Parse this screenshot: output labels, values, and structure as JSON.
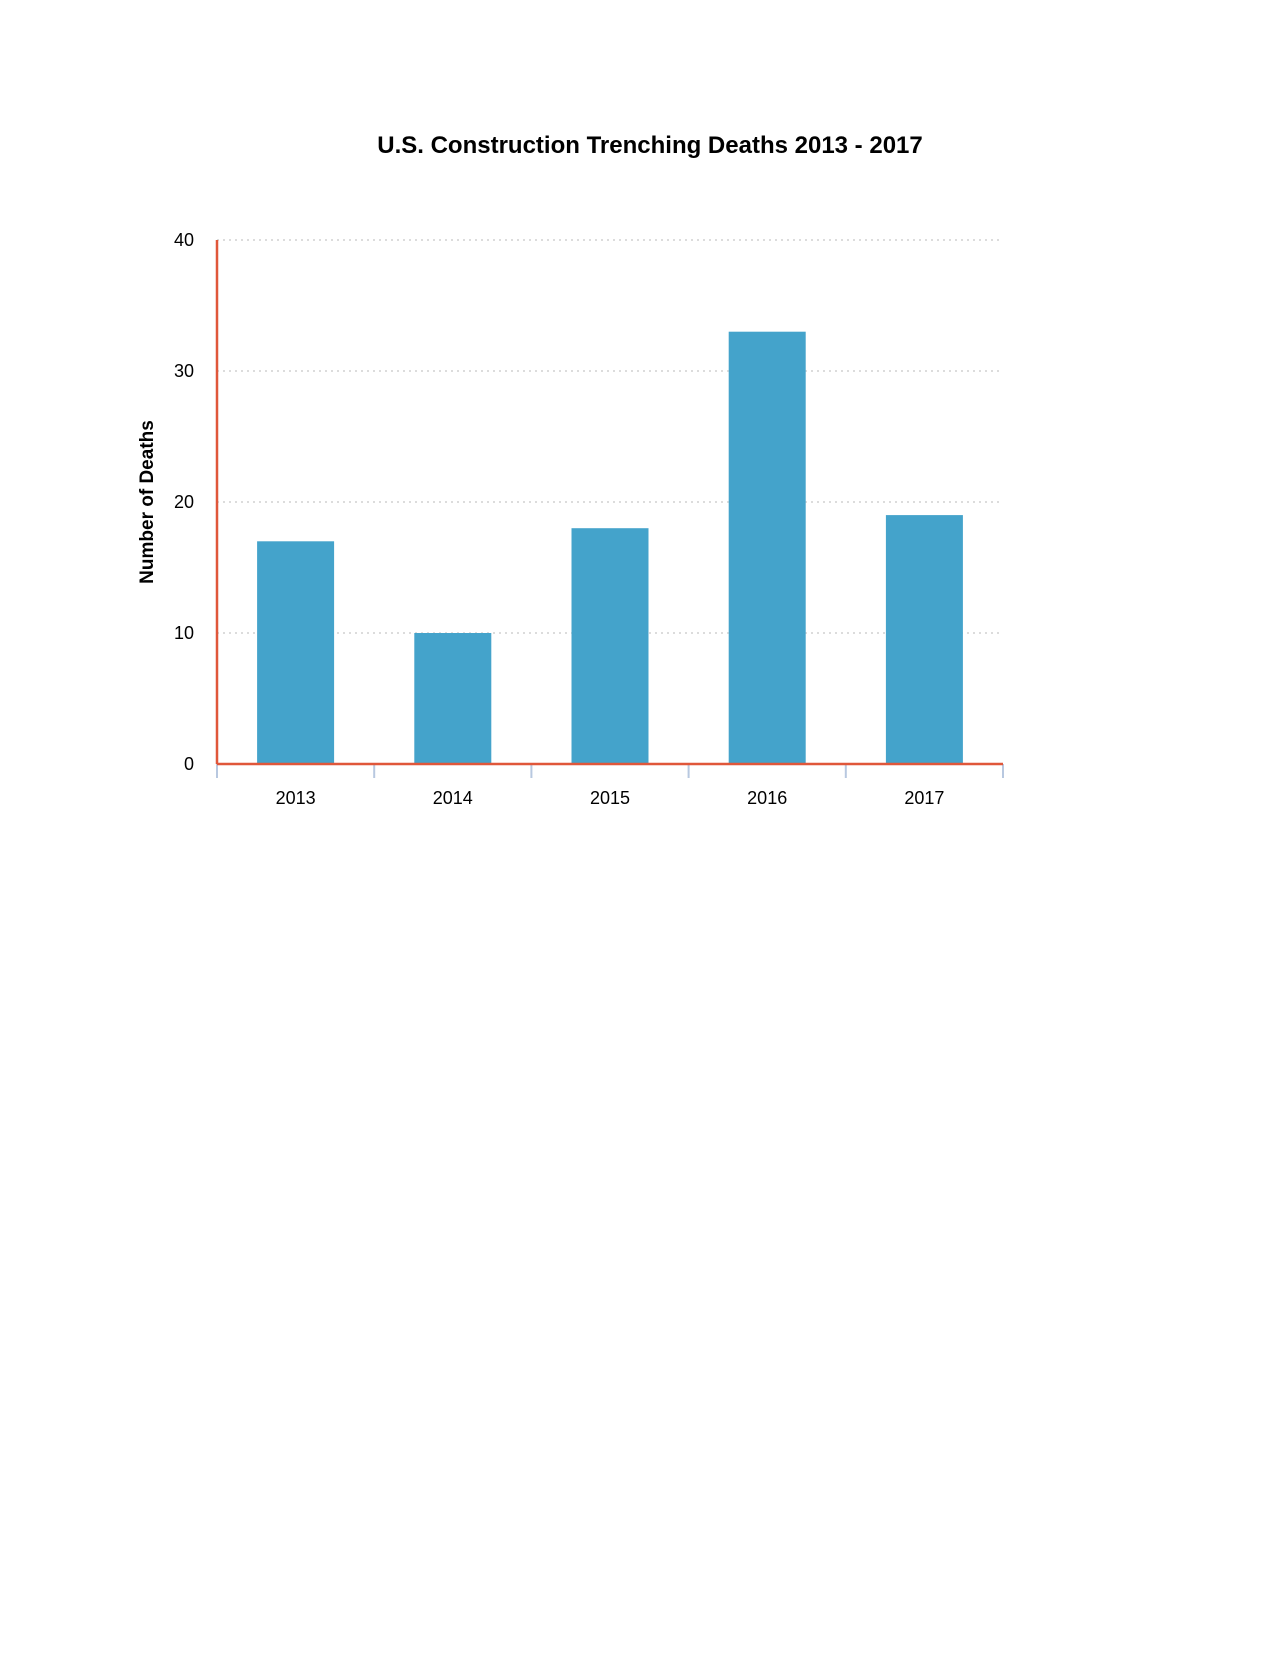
{
  "chart_data": {
    "type": "bar",
    "title": "U.S. Construction Trenching Deaths 2013 - 2017",
    "xlabel": "",
    "ylabel": "Number of Deaths",
    "categories": [
      "2013",
      "2014",
      "2015",
      "2016",
      "2017"
    ],
    "values": [
      17,
      10,
      18,
      33,
      19
    ],
    "ylim": [
      0,
      40
    ],
    "yticks": [
      0,
      10,
      20,
      30,
      40
    ],
    "grid": "horizontal dotted",
    "legend": "none",
    "colors": {
      "bar": "#44a3cb",
      "axis": "#e0573a",
      "grid": "#c8c8c8",
      "tick_mark": "#b8c8e0"
    }
  }
}
